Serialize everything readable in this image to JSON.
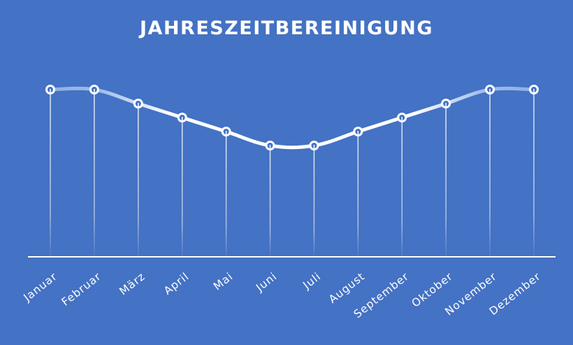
{
  "chart_data": {
    "type": "line",
    "title": "JAHRESZEITBEREINIGUNG",
    "categories": [
      "Januar",
      "Februar",
      "März",
      "April",
      "Mai",
      "Juni",
      "Juli",
      "August",
      "September",
      "Oktober",
      "November",
      "Dezember"
    ],
    "series": [
      {
        "values": [
          100,
          100,
          90,
          80,
          70,
          60,
          60,
          70,
          80,
          90,
          100,
          100
        ]
      }
    ],
    "ylim": [
      0,
      120
    ],
    "grid": false,
    "legend": "none",
    "colors": {
      "background": "#4472c4",
      "line": "#ffffff",
      "line_highlight": "#8fb0e6",
      "marker_fill": "#4472c4",
      "marker_stroke": "#ffffff",
      "axis": "#ffffff"
    }
  }
}
